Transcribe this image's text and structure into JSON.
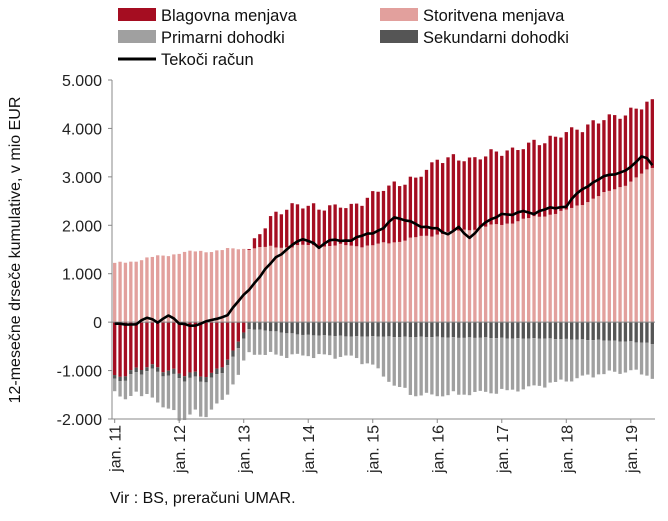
{
  "chart_data": {
    "type": "bar",
    "subtype": "stacked-bar-with-line",
    "ylabel": "12-mesečne drseče kumulative, v mio EUR",
    "ylim": [
      -2000,
      5000
    ],
    "yticks": [
      -2000,
      -1000,
      0,
      1000,
      2000,
      3000,
      4000,
      5000
    ],
    "ytick_labels": [
      "-2.000",
      "-1.000",
      "0",
      "1.000",
      "2.000",
      "3.000",
      "4.000",
      "5.000"
    ],
    "xtick_labels": [
      "jan. 11",
      "jan. 12",
      "jan. 13",
      "jan. 14",
      "jan. 15",
      "jan. 16",
      "jan. 17",
      "jan. 18",
      "jan. 19"
    ],
    "x_start": "2011-01",
    "n_months": 101,
    "grid": false,
    "legend_position": "top",
    "legend_labels": {
      "goods": "Blagovna menjava",
      "services": "Storitvena menjava",
      "primary": "Primarni dohodki",
      "secondary": "Sekundarni dohodki",
      "current": "Tekoči račun"
    },
    "colors": {
      "goods": "#a50d21",
      "services": "#e2a09d",
      "primary": "#a0a0a0",
      "secondary": "#555555",
      "current": "#000000"
    },
    "anchors": {
      "services": [
        [
          0,
          1200
        ],
        [
          12,
          1430
        ],
        [
          24,
          1520
        ],
        [
          36,
          1580
        ],
        [
          48,
          1580
        ],
        [
          60,
          1820
        ],
        [
          72,
          2020
        ],
        [
          84,
          2300
        ],
        [
          96,
          2900
        ],
        [
          100,
          3200
        ]
      ],
      "goods": [
        [
          0,
          -1150
        ],
        [
          6,
          -900
        ],
        [
          12,
          -1050
        ],
        [
          18,
          -1100
        ],
        [
          22,
          -650
        ],
        [
          24,
          -150
        ],
        [
          27,
          300
        ],
        [
          30,
          700
        ],
        [
          33,
          850
        ],
        [
          36,
          800
        ],
        [
          44,
          800
        ],
        [
          48,
          1050
        ],
        [
          52,
          1200
        ],
        [
          56,
          1200
        ],
        [
          60,
          1550
        ],
        [
          66,
          1450
        ],
        [
          72,
          1500
        ],
        [
          76,
          1500
        ],
        [
          80,
          1550
        ],
        [
          84,
          1600
        ],
        [
          90,
          1550
        ],
        [
          96,
          1450
        ],
        [
          100,
          1350
        ]
      ],
      "primary": [
        [
          0,
          -300
        ],
        [
          6,
          -500
        ],
        [
          12,
          -820
        ],
        [
          18,
          -650
        ],
        [
          24,
          -500
        ],
        [
          30,
          -480
        ],
        [
          36,
          -420
        ],
        [
          44,
          -420
        ],
        [
          48,
          -600
        ],
        [
          52,
          -1000
        ],
        [
          56,
          -1200
        ],
        [
          60,
          -1200
        ],
        [
          66,
          -1150
        ],
        [
          72,
          -1100
        ],
        [
          78,
          -1000
        ],
        [
          84,
          -850
        ],
        [
          90,
          -700
        ],
        [
          96,
          -600
        ],
        [
          100,
          -680
        ]
      ],
      "secondary": [
        [
          0,
          -80
        ],
        [
          12,
          -100
        ],
        [
          18,
          -110
        ],
        [
          24,
          -130
        ],
        [
          36,
          -270
        ],
        [
          48,
          -300
        ],
        [
          60,
          -310
        ],
        [
          72,
          -330
        ],
        [
          84,
          -350
        ],
        [
          96,
          -400
        ],
        [
          100,
          -450
        ]
      ],
      "current": [
        [
          0,
          -50
        ],
        [
          4,
          -30
        ],
        [
          6,
          80
        ],
        [
          8,
          10
        ],
        [
          10,
          150
        ],
        [
          12,
          -40
        ],
        [
          15,
          -60
        ],
        [
          18,
          30
        ],
        [
          21,
          160
        ],
        [
          24,
          550
        ],
        [
          27,
          950
        ],
        [
          30,
          1330
        ],
        [
          33,
          1600
        ],
        [
          35,
          1700
        ],
        [
          37,
          1650
        ],
        [
          38,
          1550
        ],
        [
          40,
          1680
        ],
        [
          44,
          1700
        ],
        [
          48,
          1850
        ],
        [
          50,
          1950
        ],
        [
          52,
          2150
        ],
        [
          55,
          2100
        ],
        [
          57,
          1950
        ],
        [
          60,
          1950
        ],
        [
          62,
          1800
        ],
        [
          64,
          1950
        ],
        [
          66,
          1750
        ],
        [
          69,
          2050
        ],
        [
          72,
          2250
        ],
        [
          74,
          2200
        ],
        [
          76,
          2300
        ],
        [
          78,
          2250
        ],
        [
          81,
          2350
        ],
        [
          84,
          2400
        ],
        [
          86,
          2650
        ],
        [
          89,
          2900
        ],
        [
          91,
          3000
        ],
        [
          93,
          3050
        ],
        [
          96,
          3200
        ],
        [
          98,
          3400
        ],
        [
          99,
          3400
        ],
        [
          100,
          3250
        ]
      ]
    }
  },
  "source": "Vir : BS, preračuni UMAR."
}
